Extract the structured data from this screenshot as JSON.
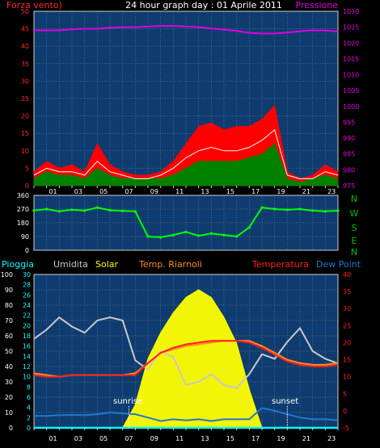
{
  "header": {
    "left_label": "Forza vento)",
    "title": "24 hour graph day : 01 Aprile 2011",
    "right_label": "Pressione"
  },
  "colors": {
    "wind_axis": "#ff2a2a",
    "pressure": "#e000e0",
    "gust": "#ff0000",
    "wind_avg": "#008000",
    "wind_line": "#ffffff",
    "direction": "#00ff00",
    "plot_bg": "#0f3c70",
    "rain": "#00ffff",
    "humidity": "#c8c8c8",
    "solar": "#ffff00",
    "temp_riarnoli": "#ff8c1a",
    "temperature": "#ff2020",
    "dewpoint": "#1e78d2",
    "grid": "#8a8a8a"
  },
  "x_ticks": [
    "01",
    "03",
    "05",
    "07",
    "09",
    "11",
    "13",
    "15",
    "17",
    "19",
    "21",
    "23"
  ],
  "direction_side_labels": [
    "N",
    "W",
    "S",
    "E",
    "N"
  ],
  "legend": {
    "rain": "Pioggia",
    "humidity": "Umidita",
    "solar": "Solar",
    "temp_riarnoli": "Temp. Riarnoli",
    "temperature": "Temperatura",
    "dewpoint": "Dew Point"
  },
  "annotations": {
    "sunrise": "sunrise",
    "sunset": "sunset"
  },
  "chart_data": [
    {
      "type": "line",
      "title": "24 hour graph day : 01 Aprile 2011",
      "x": [
        0,
        1,
        2,
        3,
        4,
        5,
        6,
        7,
        8,
        9,
        10,
        11,
        12,
        13,
        14,
        15,
        16,
        17,
        18,
        19,
        20,
        21,
        22,
        23,
        24
      ],
      "y_left_label": "Forza vento)",
      "y_left_range": [
        0,
        50
      ],
      "y_left_ticks": [
        0,
        5,
        10,
        15,
        20,
        25,
        30,
        35,
        40,
        45,
        50
      ],
      "y_right_label": "Pressione",
      "y_right_range": [
        975,
        1030
      ],
      "y_right_ticks": [
        975,
        980,
        985,
        990,
        995,
        1000,
        1005,
        1010,
        1015,
        1020,
        1025,
        1030
      ],
      "series": [
        {
          "name": "Pressione",
          "axis": "right",
          "values": [
            1024,
            1024,
            1024,
            1024.3,
            1024.5,
            1024.5,
            1024.8,
            1025,
            1025,
            1025.2,
            1025.4,
            1025.4,
            1025.2,
            1025,
            1024.6,
            1024.2,
            1023.8,
            1023.2,
            1023,
            1023,
            1023.3,
            1023.7,
            1024,
            1024,
            1023.6
          ]
        },
        {
          "type": "area",
          "axis": "left",
          "values": [
            4,
            7,
            5,
            6,
            4,
            12,
            6,
            4,
            3,
            3,
            4,
            7,
            12,
            17,
            18,
            16,
            17,
            17,
            19,
            23,
            4,
            2,
            3,
            6,
            4
          ]
        },
        {
          "type": "area",
          "axis": "left",
          "values": [
            2,
            4,
            3,
            3,
            2,
            5,
            3,
            2,
            2,
            2,
            2,
            3,
            5,
            7,
            7,
            7,
            7,
            8,
            9,
            12,
            2,
            1,
            2,
            3,
            2
          ]
        },
        {
          "axis": "left",
          "values": [
            3,
            5,
            4,
            4,
            3,
            7,
            4,
            3,
            2,
            2,
            3,
            5,
            8,
            10,
            11,
            10,
            10,
            11,
            13,
            16,
            3,
            2,
            2,
            4,
            3
          ]
        }
      ]
    },
    {
      "type": "scatter",
      "y_range": [
        0,
        360
      ],
      "y_ticks": [
        0,
        90,
        180,
        270,
        360
      ],
      "x": [
        0,
        1,
        2,
        3,
        4,
        5,
        6,
        7,
        8,
        9,
        10,
        11,
        12,
        13,
        14,
        15,
        16,
        17,
        18,
        19,
        20,
        21,
        22,
        23,
        24
      ],
      "values": [
        260,
        270,
        255,
        265,
        260,
        280,
        262,
        258,
        255,
        90,
        85,
        100,
        120,
        95,
        110,
        100,
        90,
        150,
        280,
        270,
        265,
        270,
        260,
        255,
        260
      ]
    },
    {
      "type": "line",
      "legend": [
        "Pioggia",
        "Umidita",
        "Solar",
        "Temp. Riarnoli",
        "Temperatura",
        "Dew Point"
      ],
      "y_left_ranges": {
        "humidity": [
          0,
          100
        ],
        "rain": [
          0,
          30
        ]
      },
      "y_left_ticks_humidity": [
        0,
        10,
        20,
        30,
        40,
        50,
        60,
        70,
        80,
        90,
        100
      ],
      "y_left_ticks_rain": [
        0,
        2,
        4,
        6,
        8,
        10,
        12,
        14,
        16,
        18,
        20,
        22,
        24,
        26,
        28,
        30
      ],
      "y_right_label": "Temperatura",
      "y_right_range": [
        -5,
        40
      ],
      "y_right_ticks": [
        -5,
        0,
        5,
        10,
        15,
        20,
        25,
        30,
        35,
        40
      ],
      "x": [
        0,
        1,
        2,
        3,
        4,
        5,
        6,
        7,
        8,
        9,
        10,
        11,
        12,
        13,
        14,
        15,
        16,
        17,
        18,
        19,
        20,
        21,
        22,
        23,
        24
      ],
      "series": [
        {
          "name": "Umidita",
          "values": [
            58,
            64,
            72,
            66,
            62,
            70,
            72,
            70,
            44,
            38,
            50,
            46,
            28,
            30,
            35,
            28,
            26,
            35,
            48,
            45,
            56,
            65,
            50,
            45,
            42
          ]
        },
        {
          "name": "Solar",
          "values": [
            0,
            0,
            0,
            0,
            0,
            0,
            0,
            0,
            15,
            45,
            62,
            75,
            85,
            90,
            85,
            72,
            55,
            25,
            0,
            0,
            0,
            0,
            0,
            0,
            0
          ]
        },
        {
          "name": "Temp. Riarnoli",
          "values": [
            11,
            10.5,
            10,
            10.5,
            10.5,
            10.5,
            10.5,
            10.5,
            11,
            14,
            17,
            18,
            19,
            19.5,
            20,
            20.5,
            20.5,
            20.5,
            19,
            17,
            15,
            14,
            13.5,
            13.5,
            14
          ]
        },
        {
          "name": "Temperatura",
          "values": [
            10.5,
            10,
            10,
            10.5,
            10.5,
            10.5,
            10.5,
            10.5,
            10.5,
            14,
            17,
            18.5,
            19.5,
            20,
            20.5,
            20.5,
            20.5,
            20,
            18.5,
            16.5,
            14.5,
            13.5,
            13,
            13,
            13.5
          ]
        },
        {
          "name": "Dew Point",
          "values": [
            -1.5,
            -1.5,
            -1.3,
            -1.2,
            -1.3,
            -1,
            -0.5,
            -0.8,
            -1,
            -2,
            -3,
            -2.5,
            -2.8,
            -2.5,
            -3,
            -2.5,
            -2.5,
            -2.5,
            0.8,
            0,
            -1,
            -2,
            -2.5,
            -2.5,
            -2.8
          ]
        },
        {
          "name": "Pioggia",
          "values": [
            0,
            0,
            0,
            0,
            0,
            0,
            0,
            0,
            0,
            0,
            0,
            0,
            0,
            0,
            0,
            0,
            0,
            0,
            0,
            0,
            0,
            0,
            0,
            0,
            0
          ]
        }
      ]
    }
  ]
}
